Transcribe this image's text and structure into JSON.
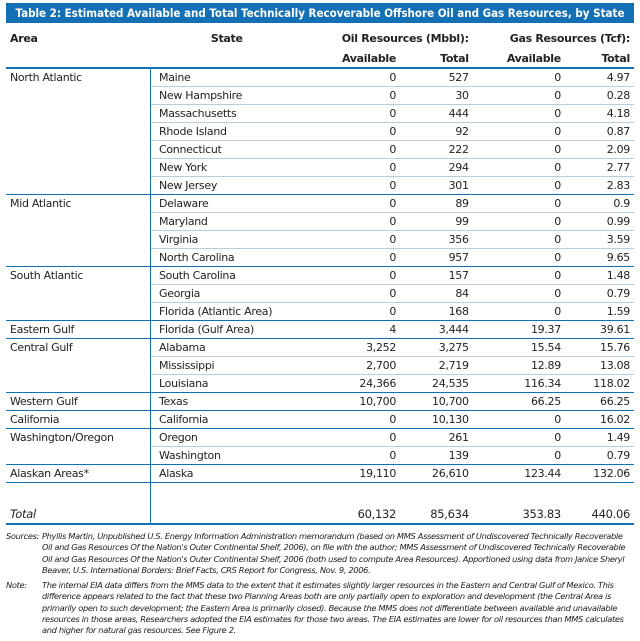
{
  "title": "Table 2: Estimated Available and Total Technically Recoverable Offshore Oil and Gas Resources, by State",
  "headers": {
    "area": "Area",
    "state": "State",
    "oil": "Oil Resources (Mbbl):",
    "gas": "Gas Resources (Tcf):",
    "available": "Available",
    "total": "Total"
  },
  "rows": [
    {
      "area": "North Atlantic",
      "state": "Maine",
      "oil_avail": "0",
      "oil_total": "527",
      "gas_avail": "0",
      "gas_total": "4.97"
    },
    {
      "area": "",
      "state": "New Hampshire",
      "oil_avail": "0",
      "oil_total": "30",
      "gas_avail": "0",
      "gas_total": "0.28"
    },
    {
      "area": "",
      "state": "Massachusetts",
      "oil_avail": "0",
      "oil_total": "444",
      "gas_avail": "0",
      "gas_total": "4.18"
    },
    {
      "area": "",
      "state": "Rhode Island",
      "oil_avail": "0",
      "oil_total": "92",
      "gas_avail": "0",
      "gas_total": "0.87"
    },
    {
      "area": "",
      "state": "Connecticut",
      "oil_avail": "0",
      "oil_total": "222",
      "gas_avail": "0",
      "gas_total": "2.09"
    },
    {
      "area": "",
      "state": "New York",
      "oil_avail": "0",
      "oil_total": "294",
      "gas_avail": "0",
      "gas_total": "2.77"
    },
    {
      "area": "",
      "state": "New Jersey",
      "oil_avail": "0",
      "oil_total": "301",
      "gas_avail": "0",
      "gas_total": "2.83"
    },
    {
      "area": "Mid Atlantic",
      "state": "Delaware",
      "oil_avail": "0",
      "oil_total": "89",
      "gas_avail": "0",
      "gas_total": "0.9"
    },
    {
      "area": "",
      "state": "Maryland",
      "oil_avail": "0",
      "oil_total": "99",
      "gas_avail": "0",
      "gas_total": "0.99"
    },
    {
      "area": "",
      "state": "Virginia",
      "oil_avail": "0",
      "oil_total": "356",
      "gas_avail": "0",
      "gas_total": "3.59"
    },
    {
      "area": "",
      "state": "North Carolina",
      "oil_avail": "0",
      "oil_total": "957",
      "gas_avail": "0",
      "gas_total": "9.65"
    },
    {
      "area": "South Atlantic",
      "state": "South Carolina",
      "oil_avail": "0",
      "oil_total": "157",
      "gas_avail": "0",
      "gas_total": "1.48"
    },
    {
      "area": "",
      "state": "Georgia",
      "oil_avail": "0",
      "oil_total": "84",
      "gas_avail": "0",
      "gas_total": "0.79"
    },
    {
      "area": "",
      "state": "Florida (Atlantic Area)",
      "oil_avail": "0",
      "oil_total": "168",
      "gas_avail": "0",
      "gas_total": "1.59"
    },
    {
      "area": "Eastern Gulf",
      "state": "Florida (Gulf Area)",
      "oil_avail": "4",
      "oil_total": "3,444",
      "gas_avail": "19.37",
      "gas_total": "39.61"
    },
    {
      "area": "Central Gulf",
      "state": "Alabama",
      "oil_avail": "3,252",
      "oil_total": "3,275",
      "gas_avail": "15.54",
      "gas_total": "15.76"
    },
    {
      "area": "",
      "state": "Mississippi",
      "oil_avail": "2,700",
      "oil_total": "2,719",
      "gas_avail": "12.89",
      "gas_total": "13.08"
    },
    {
      "area": "",
      "state": "Louisiana",
      "oil_avail": "24,366",
      "oil_total": "24,535",
      "gas_avail": "116.34",
      "gas_total": "118.02"
    },
    {
      "area": "Western Gulf",
      "state": "Texas",
      "oil_avail": "10,700",
      "oil_total": "10,700",
      "gas_avail": "66.25",
      "gas_total": "66.25"
    },
    {
      "area": "California",
      "state": "California",
      "oil_avail": "0",
      "oil_total": "10,130",
      "gas_avail": "0",
      "gas_total": "16.02"
    },
    {
      "area": "Washington/Oregon",
      "state": "Oregon",
      "oil_avail": "0",
      "oil_total": "261",
      "gas_avail": "0",
      "gas_total": "1.49"
    },
    {
      "area": "",
      "state": "Washington",
      "oil_avail": "0",
      "oil_total": "139",
      "gas_avail": "0",
      "gas_total": "0.79"
    },
    {
      "area": "Alaskan Areas*",
      "state": "Alaska",
      "oil_avail": "19,110",
      "oil_total": "26,610",
      "gas_avail": "123.44",
      "gas_total": "132.06"
    }
  ],
  "total": {
    "label": "Total",
    "oil_avail": "60,132",
    "oil_total": "85,634",
    "gas_avail": "353.83",
    "gas_total": "440.06"
  },
  "sources_label": "Sources:",
  "sources": "Phyllis Martin, Unpublished U.S. Energy Information Administration memorandum (based on MMS Assessment of Undiscovered Technically Recoverable Oil and Gas Resources Of the Nation's Outer Continental Shelf, 2006), on file with the author; MMS Assessment of Undiscovered Technically Recoverable Oil and Gas Resources Of the Nation's Outer Continental Shelf, 2006 (both used to compute Area Resources). Apportioned using data from Janice Sheryl Beaver, U.S. International Borders: Brief Facts, CRS Report for Congress, Nov. 9, 2006.",
  "note_label": "Note:",
  "note": "The internal EIA data differs from the MMS data to the extent that it estimates slightly larger resources in the Eastern and Central Gulf of Mexico. This difference appears related to the fact that these two Planning Areas both are only partially open to exploration and development (the Central Area is primarily open to such development; the Eastern Area is primarily closed). Because the MMS does not differentiate between available and unavailable resources in those areas, Researchers adopted the EIA estimates for those two areas. The EIA estimates are lower for oil resources than MMS calculates and higher for natural gas resources. See Figure 2."
}
